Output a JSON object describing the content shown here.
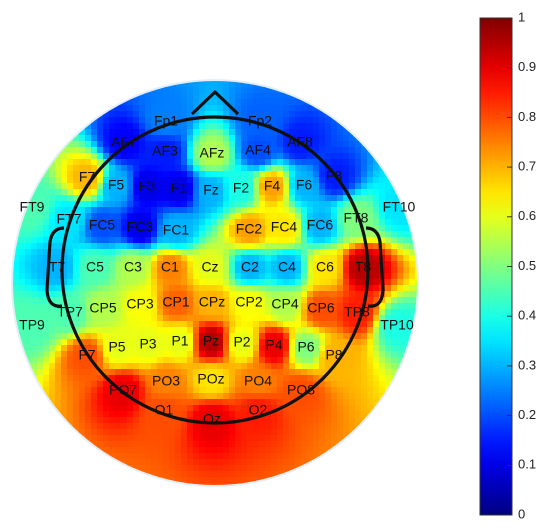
{
  "chart_data": {
    "type": "heatmap",
    "subtype": "eeg-topographic-map",
    "title": "",
    "colormap": "jet",
    "colorbar": {
      "range": [
        0,
        1
      ],
      "ticks": [
        "0",
        "0.1",
        "0.2",
        "0.3",
        "0.4",
        "0.5",
        "0.6",
        "0.7",
        "0.8",
        "0.9",
        "1"
      ]
    },
    "electrodes": [
      {
        "name": "Fp1",
        "value": 0.25
      },
      {
        "name": "Fp2",
        "value": 0.22
      },
      {
        "name": "AF7",
        "value": 0.12
      },
      {
        "name": "AF3",
        "value": 0.15
      },
      {
        "name": "AFz",
        "value": 0.55
      },
      {
        "name": "AF4",
        "value": 0.2
      },
      {
        "name": "AF8",
        "value": 0.15
      },
      {
        "name": "F7",
        "value": 0.7
      },
      {
        "name": "F5",
        "value": 0.3
      },
      {
        "name": "F3",
        "value": 0.1
      },
      {
        "name": "F1",
        "value": 0.1
      },
      {
        "name": "Fz",
        "value": 0.3
      },
      {
        "name": "F2",
        "value": 0.4
      },
      {
        "name": "F4",
        "value": 0.72
      },
      {
        "name": "F6",
        "value": 0.3
      },
      {
        "name": "F8",
        "value": 0.15
      },
      {
        "name": "FT9",
        "value": 0.45
      },
      {
        "name": "FT7",
        "value": 0.35
      },
      {
        "name": "FC5",
        "value": 0.2
      },
      {
        "name": "FC3",
        "value": 0.1
      },
      {
        "name": "FC1",
        "value": 0.3
      },
      {
        "name": "FC2",
        "value": 0.72
      },
      {
        "name": "FC4",
        "value": 0.65
      },
      {
        "name": "FC6",
        "value": 0.3
      },
      {
        "name": "FT8",
        "value": 0.5
      },
      {
        "name": "FT10",
        "value": 0.35
      },
      {
        "name": "T7",
        "value": 0.3
      },
      {
        "name": "C5",
        "value": 0.45
      },
      {
        "name": "C3",
        "value": 0.55
      },
      {
        "name": "C1",
        "value": 0.75
      },
      {
        "name": "Cz",
        "value": 0.6
      },
      {
        "name": "C2",
        "value": 0.3
      },
      {
        "name": "C4",
        "value": 0.3
      },
      {
        "name": "C6",
        "value": 0.65
      },
      {
        "name": "T8",
        "value": 0.95
      },
      {
        "name": "TP9",
        "value": 0.45
      },
      {
        "name": "TP7",
        "value": 0.45
      },
      {
        "name": "CP5",
        "value": 0.55
      },
      {
        "name": "CP3",
        "value": 0.62
      },
      {
        "name": "CP1",
        "value": 0.78
      },
      {
        "name": "CPz",
        "value": 0.7
      },
      {
        "name": "CP2",
        "value": 0.62
      },
      {
        "name": "CP4",
        "value": 0.55
      },
      {
        "name": "CP6",
        "value": 0.8
      },
      {
        "name": "TP8",
        "value": 0.85
      },
      {
        "name": "TP10",
        "value": 0.4
      },
      {
        "name": "P7",
        "value": 0.8
      },
      {
        "name": "P5",
        "value": 0.6
      },
      {
        "name": "P3",
        "value": 0.6
      },
      {
        "name": "P1",
        "value": 0.6
      },
      {
        "name": "Pz",
        "value": 0.95
      },
      {
        "name": "P2",
        "value": 0.6
      },
      {
        "name": "P4",
        "value": 0.9
      },
      {
        "name": "P6",
        "value": 0.5
      },
      {
        "name": "P8",
        "value": 0.7
      },
      {
        "name": "PO7",
        "value": 0.9
      },
      {
        "name": "PO3",
        "value": 0.75
      },
      {
        "name": "POz",
        "value": 0.65
      },
      {
        "name": "PO4",
        "value": 0.75
      },
      {
        "name": "PO8",
        "value": 0.8
      },
      {
        "name": "O1",
        "value": 0.8
      },
      {
        "name": "Oz",
        "value": 0.9
      },
      {
        "name": "O2",
        "value": 0.85
      }
    ]
  }
}
